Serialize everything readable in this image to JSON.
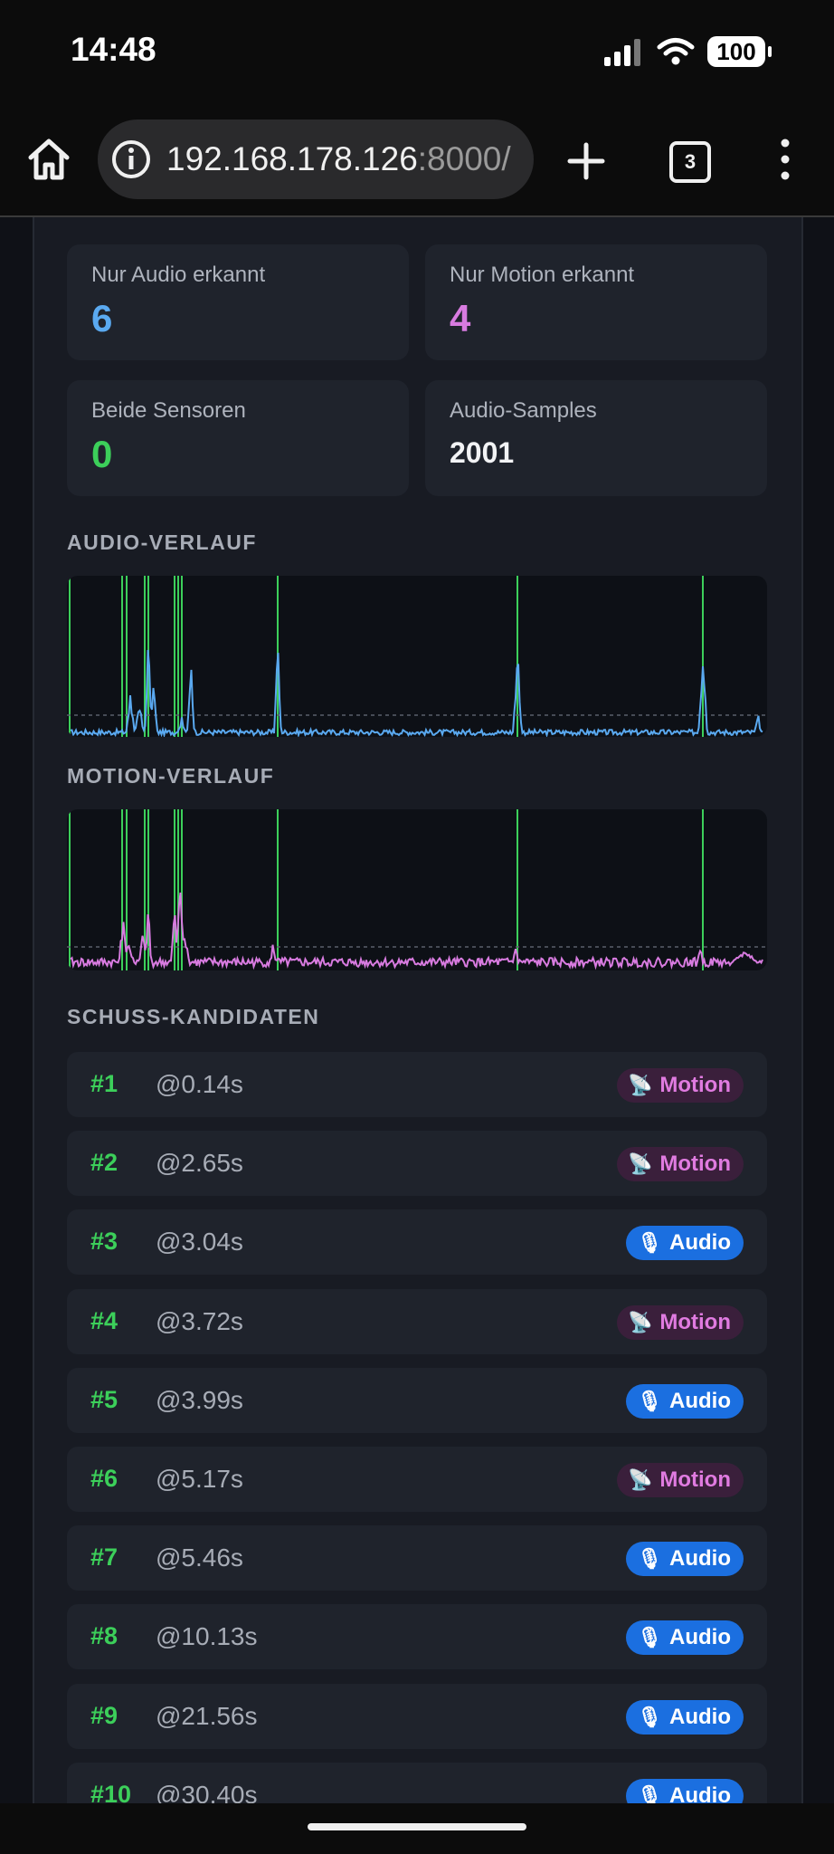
{
  "status": {
    "time": "14:48",
    "battery": "100"
  },
  "browser": {
    "url_host": "192.168.178.126",
    "url_rest": ":8000/",
    "tab_count": "3"
  },
  "stats": [
    {
      "label": "Nur Audio erkannt",
      "value": "6",
      "color": "#5aa9f0"
    },
    {
      "label": "Nur Motion erkannt",
      "value": "4",
      "color": "#d87be0"
    },
    {
      "label": "Beide Sensoren",
      "value": "0",
      "color": "#3ccf5a"
    },
    {
      "label": "Audio-Samples",
      "value": "2001",
      "color": "#f2f3f5"
    }
  ],
  "sections": {
    "audio_title": "AUDIO-VERLAUF",
    "motion_title": "MOTION-VERLAUF",
    "candidates_title": "SCHUSS-KANDIDATEN"
  },
  "chart_data": [
    {
      "type": "line",
      "title": "AUDIO-VERLAUF",
      "series": [
        {
          "color": "#5aa9f0"
        }
      ],
      "markers": {
        "color": "#3ccf5a"
      },
      "threshold": "dashed"
    },
    {
      "type": "line",
      "title": "MOTION-VERLAUF",
      "series": [
        {
          "color": "#d87be0"
        }
      ],
      "markers": {
        "color": "#3ccf5a"
      },
      "threshold": "dashed"
    }
  ],
  "candidates": [
    {
      "num": "#1",
      "time": "@0.14s",
      "type": "motion",
      "label": "Motion",
      "icon": "📡"
    },
    {
      "num": "#2",
      "time": "@2.65s",
      "type": "motion",
      "label": "Motion",
      "icon": "📡"
    },
    {
      "num": "#3",
      "time": "@3.04s",
      "type": "audio",
      "label": "Audio",
      "icon": "🎙"
    },
    {
      "num": "#4",
      "time": "@3.72s",
      "type": "motion",
      "label": "Motion",
      "icon": "📡"
    },
    {
      "num": "#5",
      "time": "@3.99s",
      "type": "audio",
      "label": "Audio",
      "icon": "🎙"
    },
    {
      "num": "#6",
      "time": "@5.17s",
      "type": "motion",
      "label": "Motion",
      "icon": "📡"
    },
    {
      "num": "#7",
      "time": "@5.46s",
      "type": "audio",
      "label": "Audio",
      "icon": "🎙"
    },
    {
      "num": "#8",
      "time": "@10.13s",
      "type": "audio",
      "label": "Audio",
      "icon": "🎙"
    },
    {
      "num": "#9",
      "time": "@21.56s",
      "type": "audio",
      "label": "Audio",
      "icon": "🎙"
    },
    {
      "num": "#10",
      "time": "@30.40s",
      "type": "audio",
      "label": "Audio",
      "icon": "🎙"
    }
  ]
}
